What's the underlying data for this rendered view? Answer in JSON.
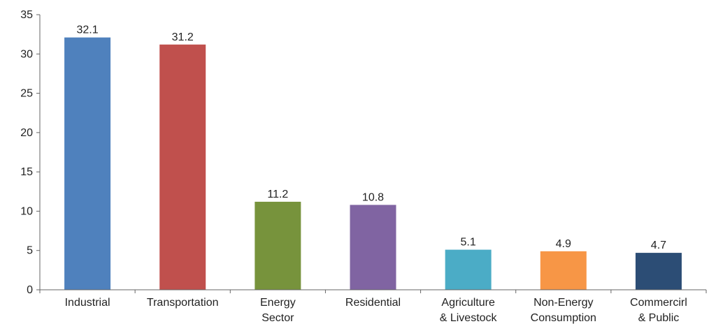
{
  "chart_data": {
    "type": "bar",
    "categories": [
      [
        "Industrial"
      ],
      [
        "Transportation"
      ],
      [
        "Energy",
        "Sector"
      ],
      [
        "Residential"
      ],
      [
        "Agriculture",
        "& Livestock"
      ],
      [
        "Non-Energy",
        "Consumption"
      ],
      [
        "Commercirl",
        "& Public"
      ]
    ],
    "values": [
      32.1,
      31.2,
      11.2,
      10.8,
      5.1,
      4.9,
      4.7
    ],
    "data_labels": [
      "32.1",
      "31.2",
      "11.2",
      "10.8",
      "5.1",
      "4.9",
      "4.7"
    ],
    "colors": [
      "#4f81bd",
      "#c0504d",
      "#77933c",
      "#8064a2",
      "#4bacc6",
      "#f79646",
      "#2c4d75"
    ],
    "ylim": [
      0,
      35
    ],
    "yticks": [
      0,
      5,
      10,
      15,
      20,
      25,
      30,
      35
    ],
    "grid": false,
    "legend": "none"
  }
}
